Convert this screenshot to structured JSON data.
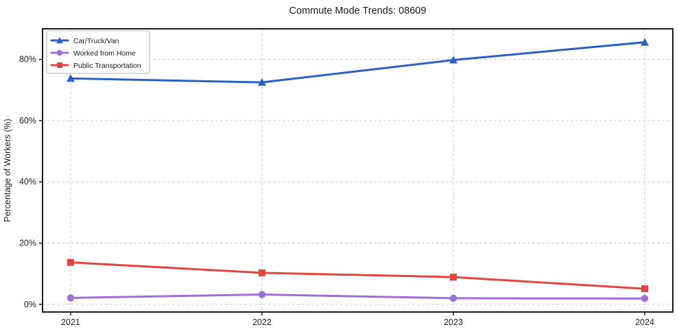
{
  "chart_data": {
    "type": "line",
    "title": "Commute Mode Trends: 08609",
    "xlabel": "",
    "ylabel": "Percentage of Workers (%)",
    "x_tick_labels": [
      "2021",
      "2022",
      "2023",
      "2024"
    ],
    "y_ticks": [
      0,
      20,
      40,
      60,
      80
    ],
    "y_tick_labels": [
      "0%",
      "20%",
      "40%",
      "60%",
      "80%"
    ],
    "ylim": [
      -2.5,
      90
    ],
    "grid": "dashed",
    "grid_color": "#cccccc",
    "axis_color": "#1a1a1a",
    "tick_label_color": "#222222",
    "legend_position": "upper-left",
    "legend_border_color": "#b5b5b5",
    "series": [
      {
        "name": "Car/Truck/Van",
        "color": "#2a5fc4",
        "marker": "triangle",
        "values": [
          73.8,
          72.5,
          79.8,
          85.6
        ]
      },
      {
        "name": "Worked from Home",
        "color": "#9d6fd8",
        "marker": "circle",
        "values": [
          2.1,
          3.2,
          2.0,
          1.9
        ]
      },
      {
        "name": "Public Transportation",
        "color": "#e0453f",
        "marker": "square",
        "values": [
          13.7,
          10.3,
          8.9,
          5.1
        ]
      }
    ]
  }
}
